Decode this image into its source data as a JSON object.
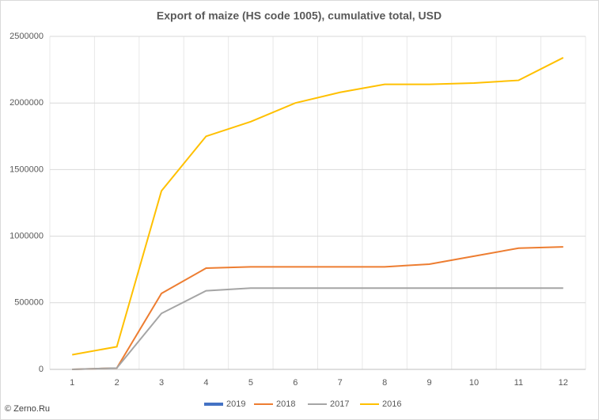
{
  "chart_data": {
    "type": "line",
    "title": "Export of maize (HS code 1005), cumulative total, USD",
    "categories": [
      "1",
      "2",
      "3",
      "4",
      "5",
      "6",
      "7",
      "8",
      "9",
      "10",
      "11",
      "12"
    ],
    "series": [
      {
        "name": "2019",
        "color": "#4472c4",
        "values": [
          null,
          null,
          null,
          null,
          null,
          null,
          null,
          null,
          null,
          null,
          null,
          null
        ]
      },
      {
        "name": "2018",
        "color": "#ed7d31",
        "values": [
          0,
          10000,
          570000,
          760000,
          770000,
          770000,
          770000,
          770000,
          790000,
          850000,
          910000,
          920000
        ]
      },
      {
        "name": "2017",
        "color": "#a5a5a5",
        "values": [
          0,
          10000,
          420000,
          590000,
          610000,
          610000,
          610000,
          610000,
          610000,
          610000,
          610000,
          610000
        ]
      },
      {
        "name": "2016",
        "color": "#ffc000",
        "values": [
          110000,
          170000,
          1340000,
          1750000,
          1860000,
          2000000,
          2080000,
          2140000,
          2140000,
          2150000,
          2170000,
          2340000
        ]
      }
    ],
    "ylim": [
      0,
      2500000
    ],
    "yticks": [
      0,
      500000,
      1000000,
      1500000,
      2000000,
      2500000
    ],
    "grid": true,
    "legend": "bottom",
    "source": "© Zerno.Ru"
  }
}
